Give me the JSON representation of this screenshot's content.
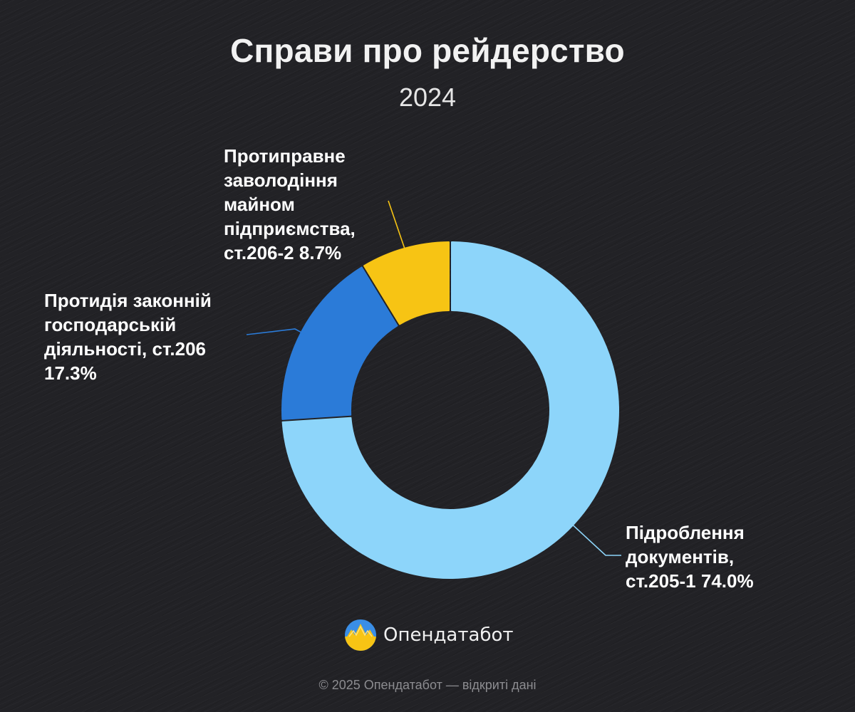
{
  "header": {
    "title": "Справи про рейдерство",
    "subtitle": "2024"
  },
  "chart_data": {
    "type": "pie",
    "donut": true,
    "title": "Справи про рейдерство",
    "subtitle": "2024",
    "unit": "%",
    "slices": [
      {
        "label": "Підроблення документів, ст.205-1",
        "display": "Підроблення\nдокументів,\nст.205-1 74.0%",
        "value": 74.0,
        "color": "#8dd5fa"
      },
      {
        "label": "Протидія законній господарській діяльності, ст.206",
        "display": "Протидія законній\nгосподарській\nдіяльності, ст.206\n17.3%",
        "value": 17.3,
        "color": "#2b7bd8"
      },
      {
        "label": "Протиправне заволодіння майном підприємства, ст.206-2",
        "display": "Протиправне\nзаволодіння\nмайном\nпідприємства,\nст.206-2 8.7%",
        "value": 8.7,
        "color": "#f7c414"
      }
    ],
    "legend": "none",
    "labels": "outside with leader lines"
  },
  "brand": {
    "name": "Опендатабот",
    "logo_icon": "opendatabot-logo-icon",
    "colors": {
      "blue": "#3a8ee6",
      "yellow": "#f7c414"
    }
  },
  "footer": {
    "text": "© 2025 Опендатабот — відкриті дані"
  },
  "colors": {
    "background": "#222226"
  }
}
